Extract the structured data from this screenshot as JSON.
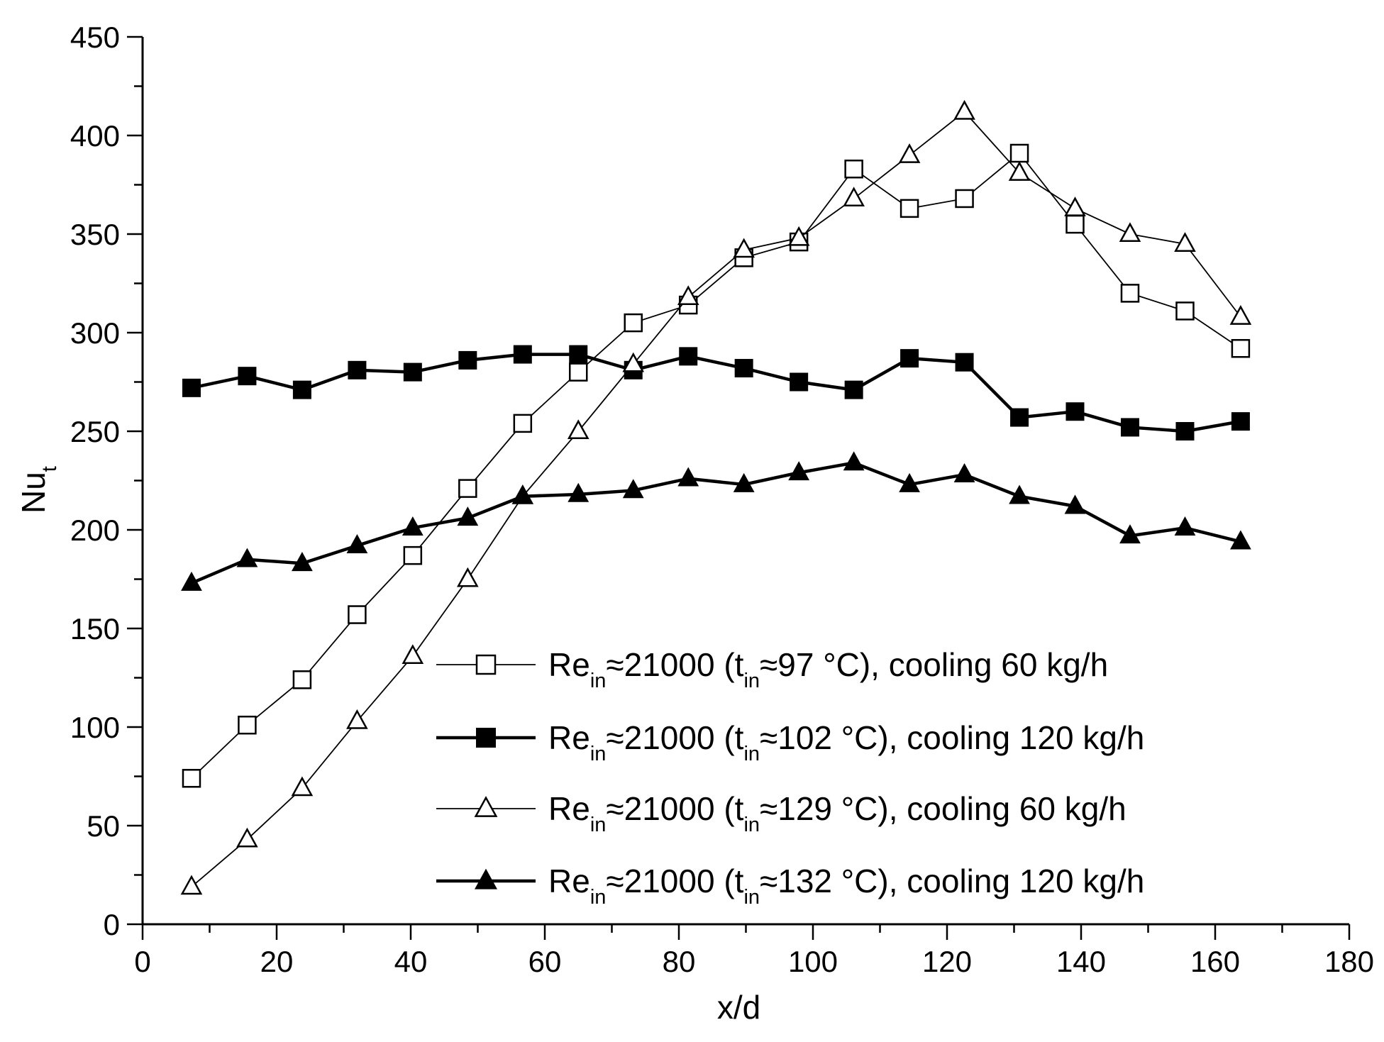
{
  "chart_data": {
    "type": "line",
    "title": "",
    "xlabel": "x/d",
    "ylabel": {
      "main": "Nu",
      "sub": "t"
    },
    "xlim": [
      0,
      180
    ],
    "ylim": [
      0,
      450
    ],
    "xticks": [
      0,
      20,
      40,
      60,
      80,
      100,
      120,
      140,
      160,
      180
    ],
    "yticks": [
      0,
      50,
      100,
      150,
      200,
      250,
      300,
      350,
      400,
      450
    ],
    "grid": false,
    "legend_position": "bottom-right",
    "x": [
      7.3,
      15.6,
      23.8,
      32.0,
      40.3,
      48.5,
      56.7,
      65.0,
      73.2,
      81.4,
      89.7,
      97.9,
      106.1,
      114.4,
      122.6,
      130.8,
      139.1,
      147.3,
      155.5,
      163.8
    ],
    "series": [
      {
        "name": "Re_in≈21000 (t_in≈97 °C), cooling 60 kg/h",
        "legend": {
          "a": "Re",
          "a_sub": "in",
          "b": "≈21000 (t",
          "b_sub": "in",
          "c": "≈97 °C), cooling 60 kg/h"
        },
        "marker": "square",
        "filled": false,
        "line_weight": "thin",
        "values": [
          74,
          101,
          124,
          157,
          187,
          221,
          254,
          280,
          305,
          314,
          338,
          346,
          383,
          363,
          368,
          391,
          355,
          320,
          311,
          292
        ]
      },
      {
        "name": "Re_in≈21000 (t_in≈102 °C), cooling 120 kg/h",
        "legend": {
          "a": "Re",
          "a_sub": "in",
          "b": "≈21000 (t",
          "b_sub": "in",
          "c": "≈102 °C), cooling 120 kg/h"
        },
        "marker": "square",
        "filled": true,
        "line_weight": "thick",
        "values": [
          272,
          278,
          271,
          281,
          280,
          286,
          289,
          289,
          281,
          288,
          282,
          275,
          271,
          287,
          285,
          257,
          260,
          252,
          250,
          255
        ]
      },
      {
        "name": "Re_in≈21000 (t_in≈129 °C), cooling 60 kg/h",
        "legend": {
          "a": "Re",
          "a_sub": "in",
          "b": "≈21000 (t",
          "b_sub": "in",
          "c": "≈129 °C), cooling 60 kg/h"
        },
        "marker": "triangle",
        "filled": false,
        "line_weight": "thin",
        "values": [
          19,
          43,
          69,
          103,
          136,
          175,
          217,
          250,
          284,
          318,
          342,
          348,
          368,
          390,
          412,
          381,
          363,
          350,
          345,
          308
        ]
      },
      {
        "name": "Re_in≈21000 (t_in≈132 °C), cooling 120 kg/h",
        "legend": {
          "a": "Re",
          "a_sub": "in",
          "b": "≈21000 (t",
          "b_sub": "in",
          "c": "≈132 °C), cooling 120 kg/h"
        },
        "marker": "triangle",
        "filled": true,
        "line_weight": "thick",
        "values": [
          173,
          185,
          183,
          192,
          201,
          206,
          217,
          218,
          220,
          226,
          223,
          229,
          234,
          223,
          228,
          217,
          212,
          197,
          201,
          194
        ]
      }
    ]
  }
}
